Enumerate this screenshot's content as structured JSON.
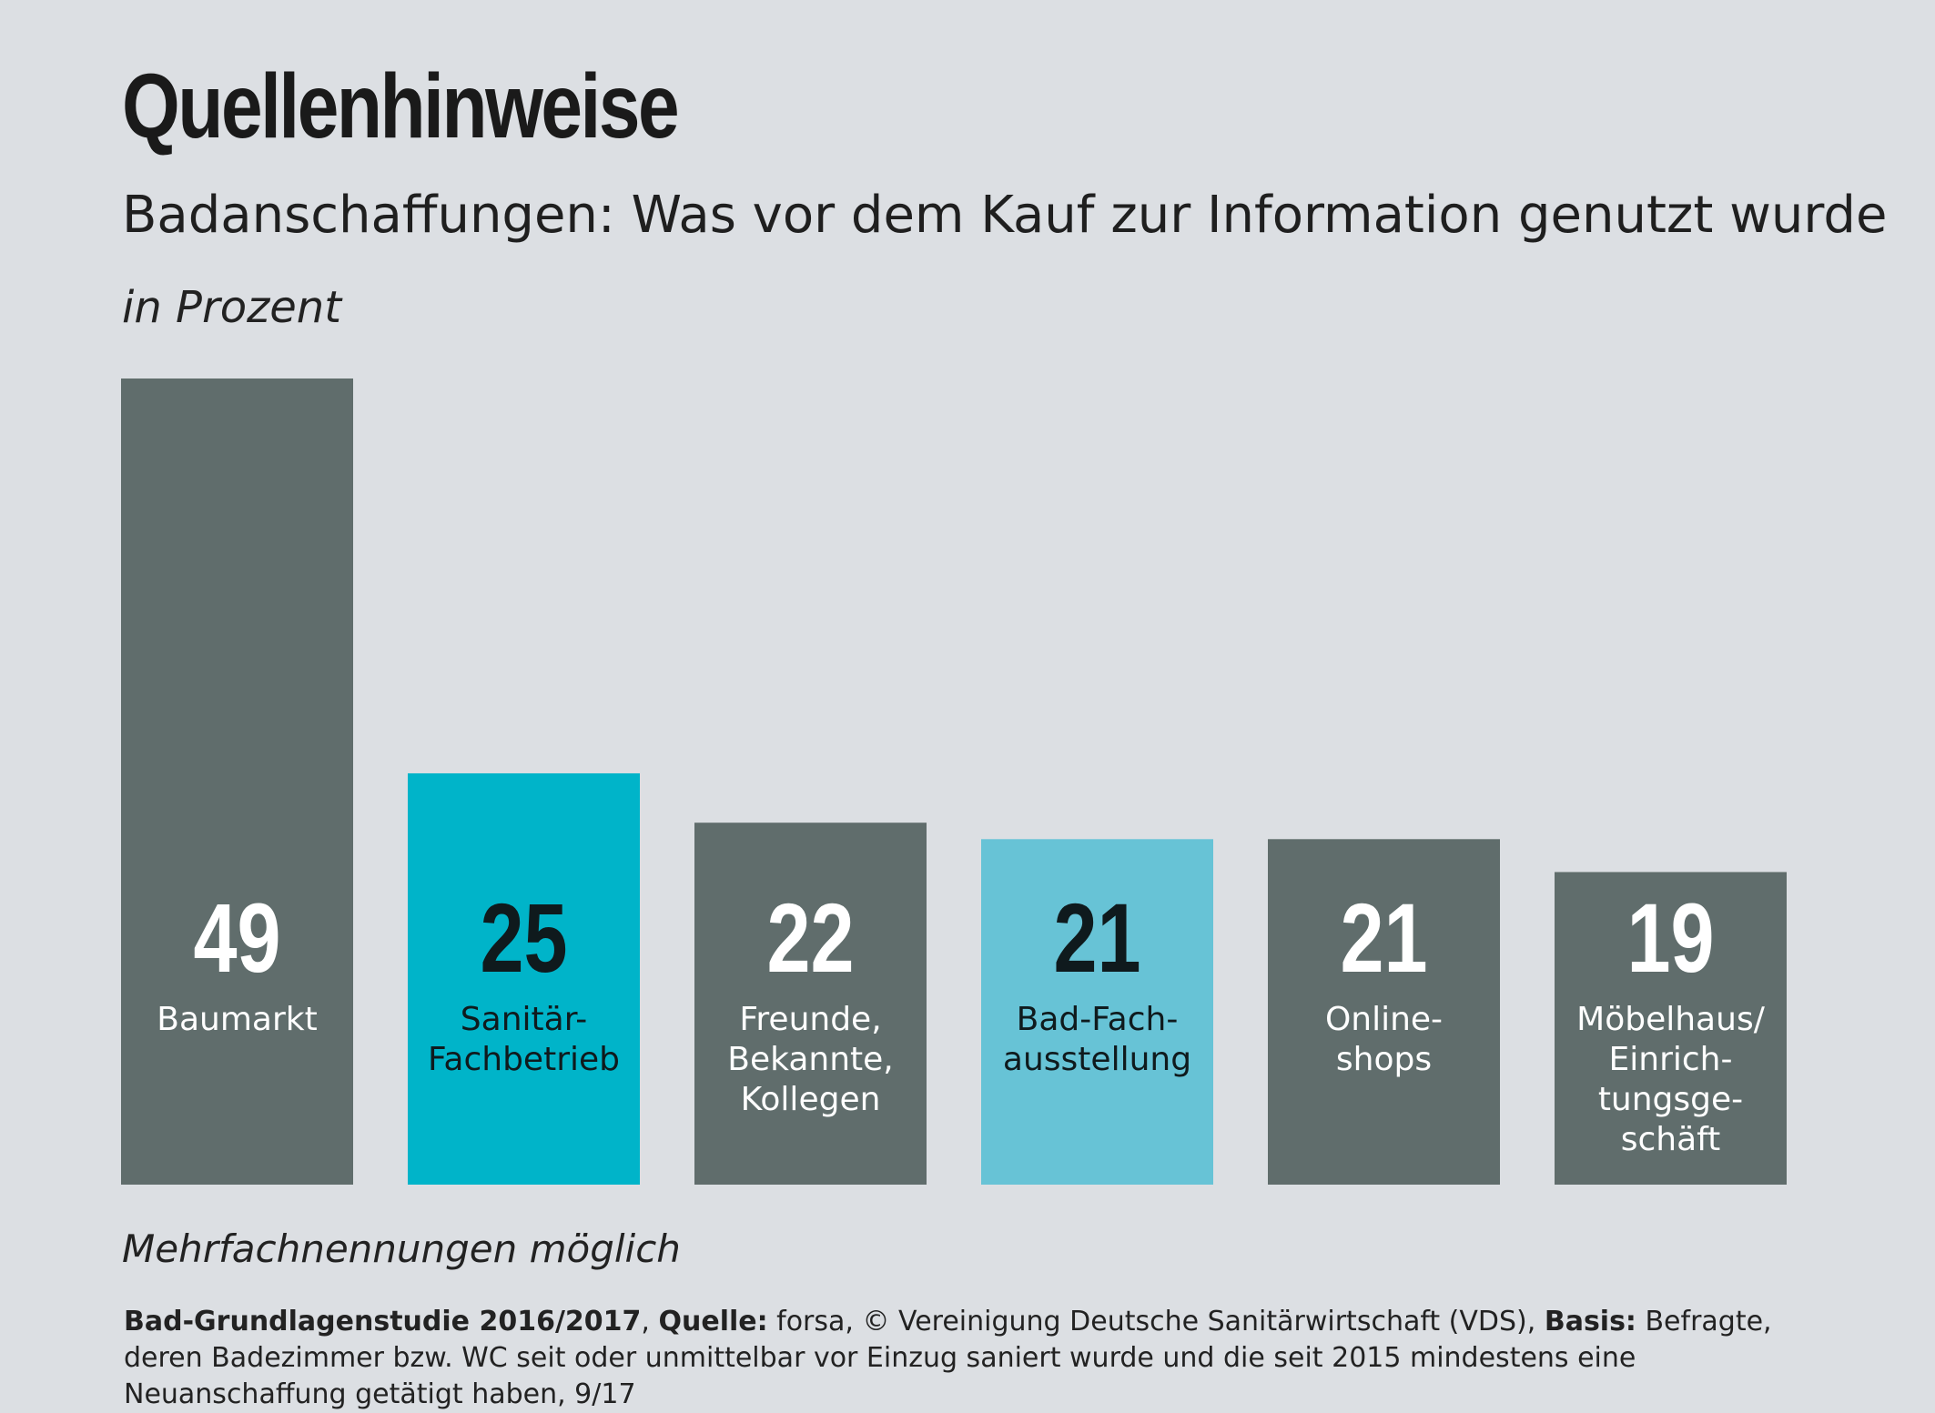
{
  "title": "Quellenhinweise",
  "subtitle": "Badanschaffungen: Was vor dem Kauf zur Information genutzt wurde",
  "unit": "in Prozent",
  "note": "Mehrfachnennungen möglich",
  "footer": {
    "study": "Bad-Grundlagenstudie 2016/2017",
    "sep1": ", ",
    "source_label": "Quelle:",
    "source_text": " forsa, © Vereinigung Deutsche Sanitärwirtschaft (VDS), ",
    "basis_label": "Basis:",
    "basis_text": " Befragte, deren Badezimmer bzw. WC seit oder unmittelbar vor Einzug saniert wurde und die seit 2015 mindestens eine Neuanschaffung getätigt haben, 9/17"
  },
  "colors": {
    "background": "#dcdfe3",
    "gray_bar": "#606d6c",
    "teal_bar": "#00b4c9",
    "light_teal_bar": "#67c3d6",
    "light_text": "#ffffff",
    "dark_text": "#0f1a1d"
  },
  "chart_data": {
    "type": "bar",
    "title": "Badanschaffungen: Was vor dem Kauf zur Information genutzt wurde",
    "unit": "in Prozent",
    "ylim": [
      0,
      49
    ],
    "grid": false,
    "legend": "none",
    "categories": [
      "Baumarkt",
      "Sanitär-\nFachbetrieb",
      "Freunde,\nBekannte,\nKollegen",
      "Bad-Fach-\nausstellung",
      "Online-\nshops",
      "Möbelhaus/\nEinrich-\ntungsge-\nschäft"
    ],
    "values": [
      49,
      25,
      22,
      21,
      21,
      19
    ],
    "bar_colors": [
      "gray_bar",
      "teal_bar",
      "gray_bar",
      "light_teal_bar",
      "gray_bar",
      "gray_bar"
    ],
    "label_colors": [
      "light_text",
      "dark_text",
      "light_text",
      "dark_text",
      "light_text",
      "light_text"
    ]
  }
}
